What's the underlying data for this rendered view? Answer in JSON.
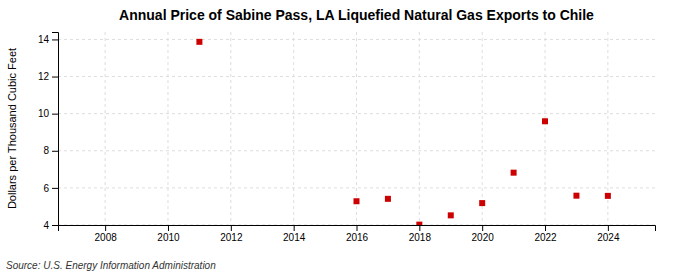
{
  "chart_data": {
    "type": "scatter",
    "title": "Annual Price of Sabine Pass, LA Liquefied Natural Gas Exports to Chile",
    "ylabel": "Dollars per Thousand Cubic Feet",
    "source": "Source: U.S. Energy Information Administration",
    "x": [
      2011,
      2016,
      2017,
      2018,
      2019,
      2020,
      2021,
      2022,
      2023,
      2024
    ],
    "values": [
      13.87,
      5.28,
      5.41,
      4.02,
      4.52,
      5.18,
      6.82,
      9.59,
      5.58,
      5.57
    ],
    "color": "#cc0000",
    "marker": "square",
    "xlim": [
      2006.5,
      2025.5
    ],
    "ylim": [
      4,
      14.4
    ],
    "xticks": [
      2008,
      2010,
      2012,
      2014,
      2016,
      2018,
      2020,
      2022,
      2024
    ],
    "yticks": [
      4,
      6,
      8,
      10,
      12,
      14
    ],
    "grid": true
  }
}
